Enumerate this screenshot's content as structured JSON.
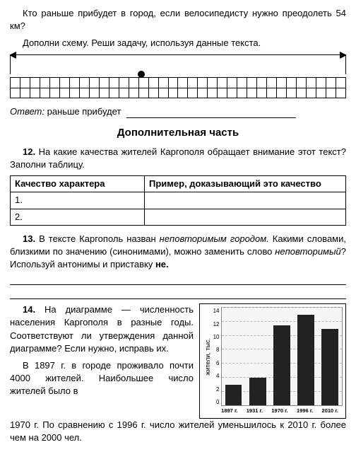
{
  "intro": {
    "line1": "Кто раньше прибудет в город, если велосипедисту нужно преодолеть 54 км?",
    "line2": "Дополни схему. Реши задачу, используя данные текста."
  },
  "answer": {
    "label": "Ответ:",
    "text": "раньше прибудет"
  },
  "section_heading": "Дополнительная часть",
  "task12": {
    "num": "12.",
    "text": "На какие качества жителей Каргополя обращает внимание этот текст? Заполни таблицу.",
    "table": {
      "col1": "Качество характера",
      "col2": "Пример, доказывающий это качество",
      "r1": "1.",
      "r2": "2."
    }
  },
  "task13": {
    "num": "13.",
    "t1": "В тексте Каргополь назван ",
    "it1": "неповторимым городом.",
    "t2": " Какими словами, близкими по значению (синонимами), можно заменить слово ",
    "it2": "неповторимый",
    "t3": "? Используй антонимы и приставку ",
    "bold": "не."
  },
  "task14": {
    "num": "14.",
    "p1": "На диаграмме — численность населения Каргополя в разные годы. Соответствуют ли утверждения данной диаграмме? Если нужно, исправь их.",
    "p2": "В 1897 г. в городе проживало почти 4000 жителей. Наибольшее число жителей было в",
    "p3": "1970 г. По сравнению с 1996 г. число жителей уменьшилось к 2010 г. более чем на 2000 чел."
  },
  "chart": {
    "type": "bar",
    "ylabel": "жители, тыс.",
    "ylim": [
      0,
      14
    ],
    "ytick_step": 2,
    "yticks": [
      "14",
      "12",
      "10",
      "8",
      "6",
      "4",
      "2",
      "0"
    ],
    "categories": [
      "1897 г.",
      "1931 г.",
      "1970 г.",
      "1996 г.",
      "2010 г."
    ],
    "values": [
      3,
      4,
      11.5,
      13,
      11
    ],
    "bar_color": "#222222",
    "grid_color": "#bbbbbb",
    "background_color": "#f5f5f5",
    "border_color": "#000000"
  }
}
